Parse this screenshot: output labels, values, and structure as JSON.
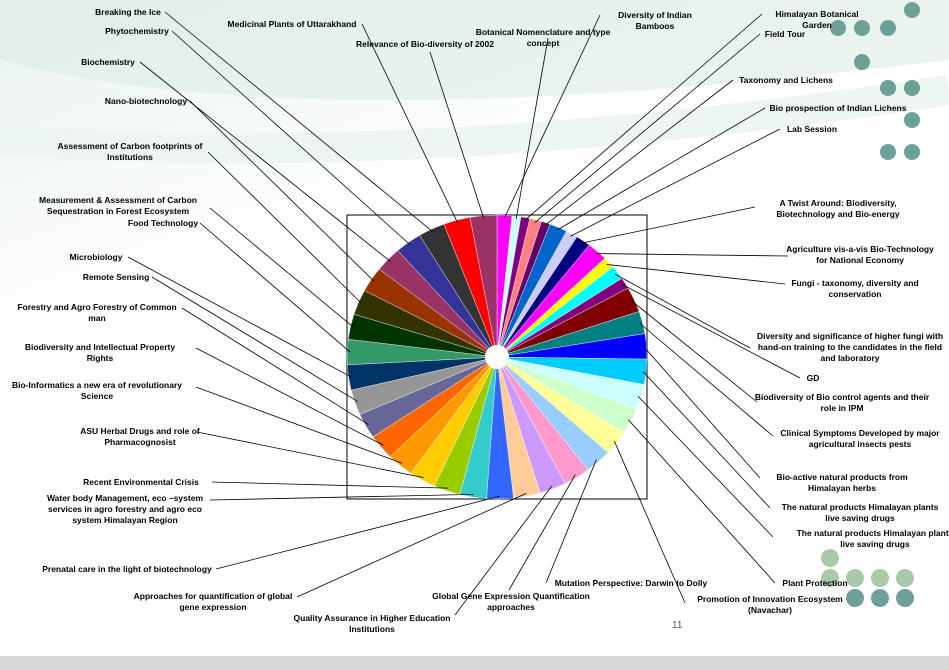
{
  "chart_data": {
    "type": "pie",
    "categories": [
      "Diversity of Indian Bamboos",
      "Botanical Nomenclature and type concept",
      "Himalayan Botanical Garden",
      "Field Tour",
      "Taxonomy and Lichens",
      "Bio prospection of Indian Lichens",
      "Lab Session",
      "A Twist Around: Biodiversity, Biotechnology and Bio-energy",
      "Agriculture vis-a-vis Bio-Technology for National Economy",
      "Fungi - taxonomy, diversity and conservation",
      "Diversity and significance of higher fungi with hand-on training to the candidates in the field and laboratory",
      "GD",
      "Biodiversity of Bio control agents and their role in IPM",
      "Clinical Symptoms Developed by major agricultural insects pests",
      "Bio-active natural products from Himalayan herbs",
      "The natural products Himalayan plants live saving drugs",
      "The natural products Himalayan plants live saving drugs",
      "Plant Protection",
      "Promotion of Innovation Ecosystem (Navachar)",
      "Mutation Perspective: Darwin to Dolly",
      "Global Gene Expression Quantification approaches",
      "Quality Assurance in Higher Education Institutions",
      "Approaches for quantification of global gene expression",
      "Prenatal care in the light of biotechnology",
      "Water body Management, eco –system services in agro forestry and agro eco system Himalayan Region",
      "Recent Environmental Crisis",
      "ASU Herbal Drugs and role of Pharmacognosist",
      "Bio-Informatics a new era of revolutionary Science",
      "Biodiversity and Intellectual Property Rights",
      "Forestry and Agro Forestry of Common man",
      "Remote Sensing",
      "Microbiology",
      "Food Technology",
      "Measurement & Assessment of Carbon Sequestration in Forest Ecosystem",
      "Assessment of Carbon footprints of Institutions",
      "Nano-biotechnology",
      "Biochemistry",
      "Phytochemistry",
      "Breaking the Ice",
      "Medicinal Plants of Uttarakhand",
      "Relevance of Bio-diversity of 2002"
    ],
    "values": [
      5,
      3,
      3,
      4,
      3,
      6,
      4,
      5,
      7,
      4,
      5,
      4,
      9,
      8,
      9,
      9,
      9,
      9,
      9,
      9,
      9,
      9,
      9,
      9,
      9,
      9,
      9,
      9,
      9,
      9,
      9,
      9,
      9,
      9,
      9,
      9,
      9,
      9,
      9,
      9,
      9
    ],
    "colors": [
      "#ff00ff",
      "#ccffff",
      "#800080",
      "#ff8080",
      "#660066",
      "#0066cc",
      "#ccccff",
      "#000080",
      "#ff00ff",
      "#ffff00",
      "#00ffff",
      "#800080",
      "#800000",
      "#008080",
      "#0000ff",
      "#00ccff",
      "#ccffff",
      "#ccffcc",
      "#ffff99",
      "#99ccff",
      "#ff99cc",
      "#cc99ff",
      "#ffcc99",
      "#3366ff",
      "#33cccc",
      "#99cc00",
      "#ffcc00",
      "#ff9900",
      "#ff6600",
      "#666699",
      "#969696",
      "#003366",
      "#339966",
      "#003300",
      "#333300",
      "#993300",
      "#993366",
      "#333399",
      "#333333",
      "#ff0000",
      "#993366"
    ]
  },
  "page_number": "11"
}
